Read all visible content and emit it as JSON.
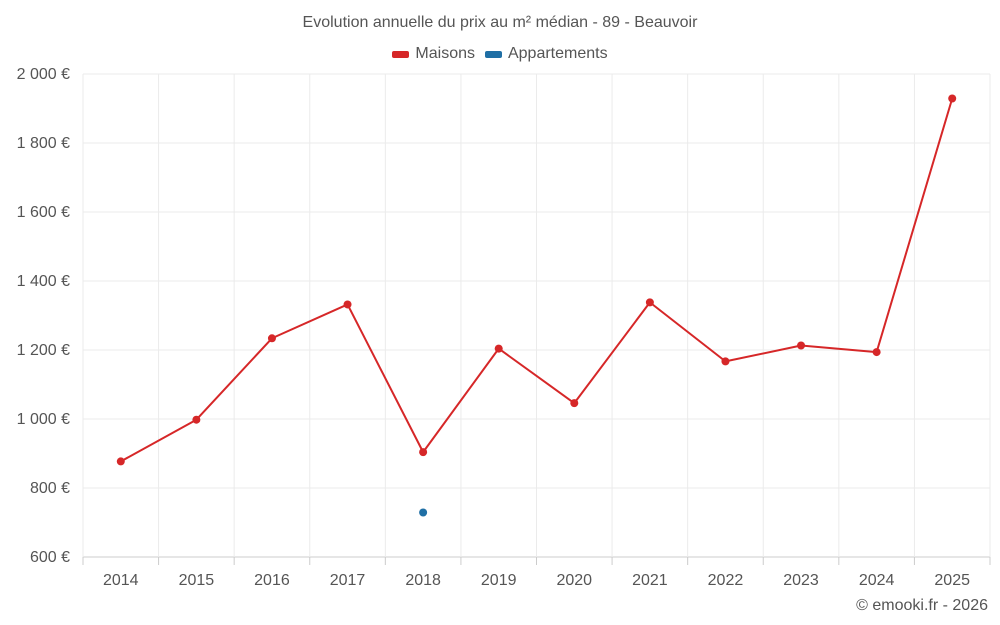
{
  "chart_data": {
    "type": "line",
    "title": "Evolution annuelle du prix au m² médian - 89 - Beauvoir",
    "categories": [
      "2014",
      "2015",
      "2016",
      "2017",
      "2018",
      "2019",
      "2020",
      "2021",
      "2022",
      "2023",
      "2024",
      "2025"
    ],
    "series": [
      {
        "name": "Maisons",
        "color": "#d62728",
        "values": [
          877,
          998,
          1234,
          1332,
          904,
          1204,
          1046,
          1338,
          1167,
          1213,
          1194,
          1929
        ]
      },
      {
        "name": "Appartements",
        "color": "#1f6fa5",
        "values": [
          null,
          null,
          null,
          null,
          729,
          null,
          null,
          null,
          null,
          null,
          null,
          null
        ]
      }
    ],
    "ylim": [
      600,
      2000
    ],
    "yticks": [
      600,
      800,
      1000,
      1200,
      1400,
      1600,
      1800,
      2000
    ],
    "ytick_labels": [
      "600 €",
      "800 €",
      "1 000 €",
      "1 200 €",
      "1 400 €",
      "1 600 €",
      "1 800 €",
      "2 000 €"
    ],
    "xlabel": "",
    "ylabel": "",
    "grid": true,
    "legend_position": "top-center"
  },
  "credit": "© emooki.fr - 2026"
}
